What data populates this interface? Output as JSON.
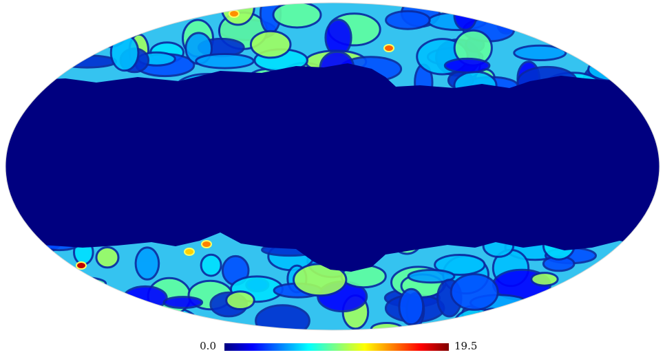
{
  "map": {
    "projection": "mollweide",
    "colormap": "jet",
    "masked_color": "#000080"
  },
  "colorbar": {
    "min_label": "0.0",
    "max_label": "19.5",
    "colors": [
      "#00007f",
      "#0000ff",
      "#0080ff",
      "#00ffff",
      "#80ff80",
      "#ffff00",
      "#ff8000",
      "#ff0000",
      "#7f0000"
    ]
  }
}
